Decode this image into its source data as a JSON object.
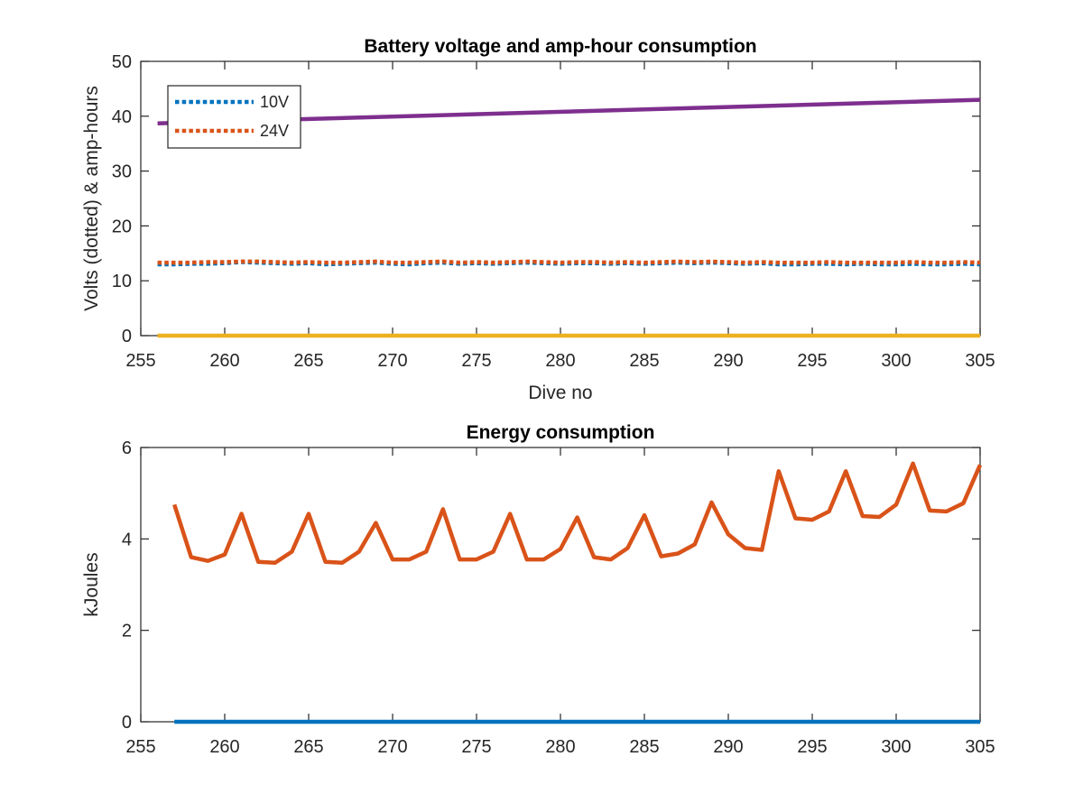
{
  "chart_data": [
    {
      "type": "line",
      "title": "Battery voltage and amp-hour consumption",
      "xlabel": "Dive no",
      "ylabel": "Volts (dotted) & amp-hours",
      "xlim": [
        255,
        305
      ],
      "ylim": [
        0,
        50
      ],
      "xticks": [
        255,
        260,
        265,
        270,
        275,
        280,
        285,
        290,
        295,
        300,
        305
      ],
      "yticks": [
        0,
        10,
        20,
        30,
        40,
        50
      ],
      "grid": false,
      "legend_position": "top-left",
      "x": [
        256,
        257,
        258,
        259,
        260,
        261,
        262,
        263,
        264,
        265,
        266,
        267,
        268,
        269,
        270,
        271,
        272,
        273,
        274,
        275,
        276,
        277,
        278,
        279,
        280,
        281,
        282,
        283,
        284,
        285,
        286,
        287,
        288,
        289,
        290,
        291,
        292,
        293,
        294,
        295,
        296,
        297,
        298,
        299,
        300,
        301,
        302,
        303,
        304,
        305
      ],
      "series": [
        {
          "name": "10V",
          "style": "dotted",
          "color": "#0072BD",
          "values": [
            13.0,
            13.0,
            13.1,
            13.1,
            13.2,
            13.4,
            13.3,
            13.2,
            13.1,
            13.2,
            13.0,
            13.1,
            13.2,
            13.3,
            13.1,
            13.0,
            13.2,
            13.3,
            13.1,
            13.2,
            13.1,
            13.2,
            13.3,
            13.2,
            13.1,
            13.2,
            13.2,
            13.1,
            13.2,
            13.1,
            13.2,
            13.3,
            13.2,
            13.3,
            13.2,
            13.1,
            13.2,
            13.0,
            13.0,
            13.1,
            13.1,
            13.0,
            13.1,
            13.0,
            13.0,
            13.1,
            13.0,
            13.0,
            13.1,
            13.0
          ]
        },
        {
          "name": "24V",
          "style": "dotted",
          "color": "#D95319",
          "values": [
            13.3,
            13.3,
            13.3,
            13.4,
            13.4,
            13.5,
            13.5,
            13.4,
            13.3,
            13.4,
            13.3,
            13.3,
            13.4,
            13.5,
            13.3,
            13.3,
            13.4,
            13.5,
            13.3,
            13.4,
            13.3,
            13.4,
            13.5,
            13.4,
            13.3,
            13.4,
            13.4,
            13.3,
            13.4,
            13.3,
            13.4,
            13.5,
            13.4,
            13.5,
            13.4,
            13.3,
            13.4,
            13.3,
            13.3,
            13.3,
            13.4,
            13.3,
            13.3,
            13.3,
            13.3,
            13.4,
            13.3,
            13.3,
            13.4,
            13.3
          ]
        },
        {
          "style": "solid",
          "color": "#7E2F8E",
          "x": [
            256,
            305
          ],
          "values": [
            38.7,
            43.0
          ]
        },
        {
          "style": "solid",
          "color": "#EDB120",
          "x": [
            256,
            305
          ],
          "values": [
            0,
            0
          ]
        }
      ]
    },
    {
      "type": "line",
      "title": "Energy consumption",
      "xlabel": "",
      "ylabel": "kJoules",
      "xlim": [
        255,
        305
      ],
      "ylim": [
        0,
        6
      ],
      "xticks": [
        255,
        260,
        265,
        270,
        275,
        280,
        285,
        290,
        295,
        300,
        305
      ],
      "yticks": [
        0,
        2,
        4,
        6
      ],
      "grid": false,
      "series": [
        {
          "style": "solid",
          "color": "#D95319",
          "x": [
            257,
            258,
            259,
            260,
            261,
            262,
            263,
            264,
            265,
            266,
            267,
            268,
            269,
            270,
            271,
            272,
            273,
            274,
            275,
            276,
            277,
            278,
            279,
            280,
            281,
            282,
            283,
            284,
            285,
            286,
            287,
            288,
            289,
            290,
            291,
            292,
            293,
            294,
            295,
            296,
            297,
            298,
            299,
            300,
            301,
            302,
            303,
            304,
            305
          ],
          "values": [
            4.75,
            3.6,
            3.52,
            3.66,
            4.55,
            3.5,
            3.48,
            3.72,
            4.55,
            3.5,
            3.48,
            3.72,
            4.35,
            3.55,
            3.55,
            3.72,
            4.65,
            3.55,
            3.55,
            3.72,
            4.55,
            3.55,
            3.55,
            3.78,
            4.47,
            3.6,
            3.55,
            3.8,
            4.52,
            3.62,
            3.68,
            3.88,
            4.8,
            4.1,
            3.8,
            3.76,
            5.48,
            4.45,
            4.42,
            4.6,
            5.48,
            4.5,
            4.48,
            4.75,
            5.65,
            4.62,
            4.6,
            4.78,
            5.62
          ]
        },
        {
          "style": "solid",
          "color": "#0072BD",
          "x": [
            257,
            305
          ],
          "values": [
            0,
            0
          ]
        }
      ]
    }
  ]
}
